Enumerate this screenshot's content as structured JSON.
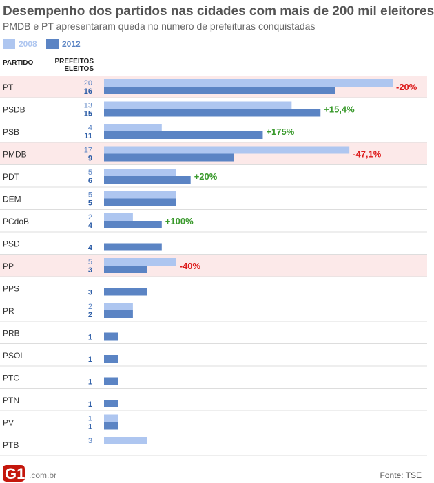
{
  "title": "Desempenho dos partidos nas cidades com mais de 200 mil eleitores",
  "subtitle": "PMDB e PT apresentaram queda no número de prefeituras conquistadas",
  "legend": [
    {
      "label": "2008",
      "color": "#aec6f0"
    },
    {
      "label": "2012",
      "color": "#5b84c4"
    }
  ],
  "headers": {
    "party": "PARTIDO",
    "elected": "PREFEITOS ELEITOS"
  },
  "footer": {
    "logo": "G1",
    "domain": ".com.br",
    "source": "Fonte: TSE"
  },
  "colors": {
    "y2008": "#aec6f0",
    "y2012": "#5b84c4",
    "value2008_text": "#5b84c4",
    "value2012_text": "#2f5fa8",
    "highlight_row": "#fce9e9",
    "row_line": "#dddddd",
    "positive": "#3a9a2c",
    "negative": "#dd1c1c"
  },
  "chart_data": {
    "type": "bar",
    "orientation": "horizontal",
    "xlim": [
      0,
      20
    ],
    "categories": [
      "PT",
      "PSDB",
      "PSB",
      "PMDB",
      "PDT",
      "DEM",
      "PCdoB",
      "PSD",
      "PP",
      "PPS",
      "PR",
      "PRB",
      "PSOL",
      "PTC",
      "PTN",
      "PV",
      "PTB"
    ],
    "series": [
      {
        "name": "2008",
        "values": [
          20,
          13,
          4,
          17,
          5,
          5,
          2,
          null,
          5,
          null,
          2,
          null,
          null,
          null,
          null,
          1,
          3
        ]
      },
      {
        "name": "2012",
        "values": [
          16,
          15,
          11,
          9,
          6,
          5,
          4,
          4,
          3,
          3,
          2,
          1,
          1,
          1,
          1,
          1,
          null
        ]
      }
    ],
    "changes": [
      "-20%",
      "+15,4%",
      "+175%",
      "-47,1%",
      "+20%",
      "",
      "+100%",
      "",
      "-40%",
      "",
      "",
      "",
      "",
      "",
      "",
      "",
      ""
    ],
    "highlighted": [
      "PT",
      "PMDB",
      "PP"
    ]
  }
}
